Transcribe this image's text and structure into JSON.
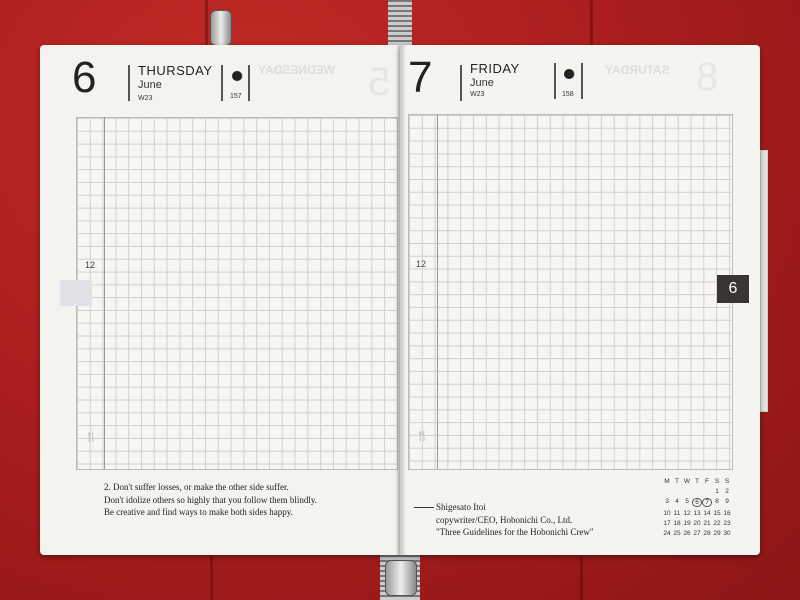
{
  "left_page": {
    "day": "6",
    "weekday": "THURSDAY",
    "month": "June",
    "week": "W23",
    "day_of_year": "157",
    "ghost_weekday": "WEDNESDAY",
    "ghost_day": "5",
    "hour_label": "12",
    "quote": [
      "2. Don't suffer losses, or make the other side suffer.",
      "Don't idolize others so highly that you follow them blindly.",
      "Be creative and find ways to make both sides happy."
    ]
  },
  "right_page": {
    "day": "7",
    "weekday": "FRIDAY",
    "month": "June",
    "week": "W23",
    "day_of_year": "158",
    "ghost_weekday": "SATURDAY",
    "ghost_day": "8",
    "hour_label": "12",
    "attribution": [
      "Shigesato Itoi",
      "copywriter/CEO, Hobonichi Co., Ltd.",
      "\"Three Guidelines for the Hobonichi Crew\""
    ]
  },
  "mini_calendar": {
    "headers": [
      "M",
      "T",
      "W",
      "T",
      "F",
      "S",
      "S"
    ],
    "days": [
      "",
      "",
      "",
      "",
      "",
      "1",
      "2",
      "3",
      "4",
      "5",
      "6",
      "7",
      "8",
      "9",
      "10",
      "11",
      "12",
      "13",
      "14",
      "15",
      "16",
      "17",
      "18",
      "19",
      "20",
      "21",
      "22",
      "23",
      "24",
      "25",
      "26",
      "27",
      "28",
      "29",
      "30"
    ],
    "highlighted": [
      "6",
      "7"
    ]
  },
  "month_tab": "6",
  "icons": {
    "moon": "moon-phase-icon",
    "meal": "fork-knife-icon"
  },
  "colors": {
    "cover": "#a81d1c",
    "paper": "#f4f3f0",
    "tab": "#3a3532"
  }
}
